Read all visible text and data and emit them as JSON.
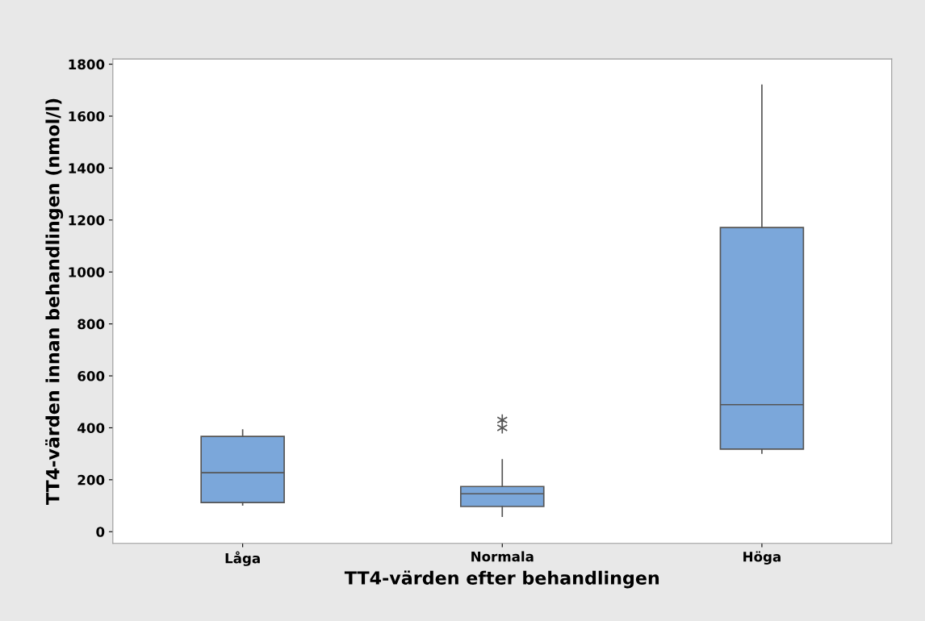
{
  "chart_data": {
    "type": "box",
    "xlabel": "TT4-värden efter behandlingen",
    "ylabel": "TT4-värden innan behandlingen (nmol/l)",
    "categories": [
      "Låga",
      "Normala",
      "Höga"
    ],
    "boxes": [
      {
        "low": 103,
        "q1": 112,
        "median": 227,
        "q3": 367,
        "high": 392
      },
      {
        "low": 59,
        "q1": 97,
        "median": 146,
        "q3": 174,
        "high": 277,
        "outliers": [
          430,
          400
        ]
      },
      {
        "low": 302,
        "q1": 318,
        "median": 489,
        "q3": 1171,
        "high": 1719
      }
    ],
    "color": "#7ba7da",
    "ylim": [
      -45,
      1820
    ],
    "yticks": [
      0,
      200,
      400,
      600,
      800,
      1000,
      1200,
      1400,
      1600,
      1800
    ],
    "grid": false
  }
}
